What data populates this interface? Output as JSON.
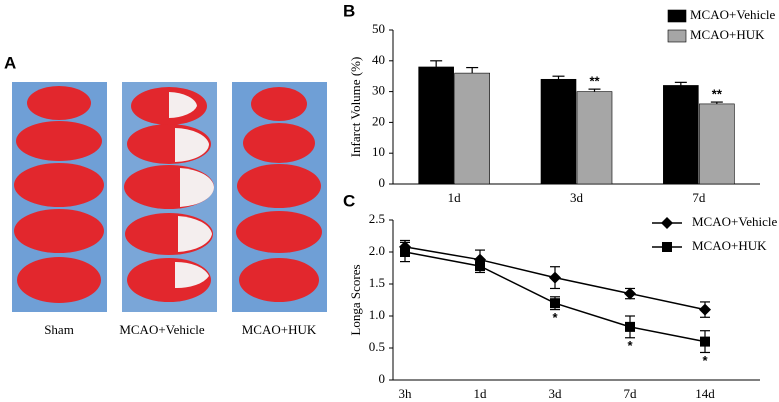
{
  "panel_a": {
    "panel_label": "A",
    "captions": [
      "Sham",
      "MCAO+Vehicle",
      "MCAO+HUK"
    ]
  },
  "chart_data": [
    {
      "type": "bar",
      "panel_label": "B",
      "ylabel": "Infarct Volume (%)",
      "categories": [
        "1d",
        "3d",
        "7d"
      ],
      "series": [
        {
          "name": "MCAO+Vehicle",
          "color": "#000000",
          "values": [
            38,
            34,
            32
          ],
          "errors": [
            2,
            1,
            1
          ],
          "significance": [
            null,
            null,
            null
          ]
        },
        {
          "name": "MCAO+HUK",
          "color": "#a6a6a6",
          "values": [
            36,
            30,
            26
          ],
          "errors": [
            1.8,
            0.8,
            0.6
          ],
          "significance": [
            null,
            "**",
            "**"
          ]
        }
      ],
      "ylim": [
        0,
        50
      ],
      "yticks": [
        0,
        10,
        20,
        30,
        40,
        50
      ],
      "legend": "upper right"
    },
    {
      "type": "line",
      "panel_label": "C",
      "ylabel": "Longa Scores",
      "categories": [
        "3h",
        "1d",
        "3d",
        "7d",
        "14d"
      ],
      "series": [
        {
          "name": "MCAO+Vehicle",
          "color": "#000000",
          "marker": "diamond",
          "values": [
            2.08,
            1.88,
            1.6,
            1.35,
            1.1
          ],
          "errors": [
            0.1,
            0.15,
            0.17,
            0.08,
            0.12
          ],
          "significance": [
            null,
            null,
            null,
            null,
            null
          ]
        },
        {
          "name": "MCAO+HUK",
          "color": "#000000",
          "marker": "square",
          "values": [
            2.0,
            1.78,
            1.2,
            0.83,
            0.6
          ],
          "errors": [
            0.15,
            0.1,
            0.1,
            0.17,
            0.17
          ],
          "significance": [
            null,
            null,
            "*",
            "*",
            "*"
          ]
        }
      ],
      "ylim": [
        0,
        2.5
      ],
      "yticks": [
        0,
        0.5,
        {
          "value": 1,
          "label": "1.0"
        },
        1.5,
        {
          "value": 2,
          "label": "2.0"
        },
        2.5
      ],
      "legend": "upper right"
    }
  ]
}
